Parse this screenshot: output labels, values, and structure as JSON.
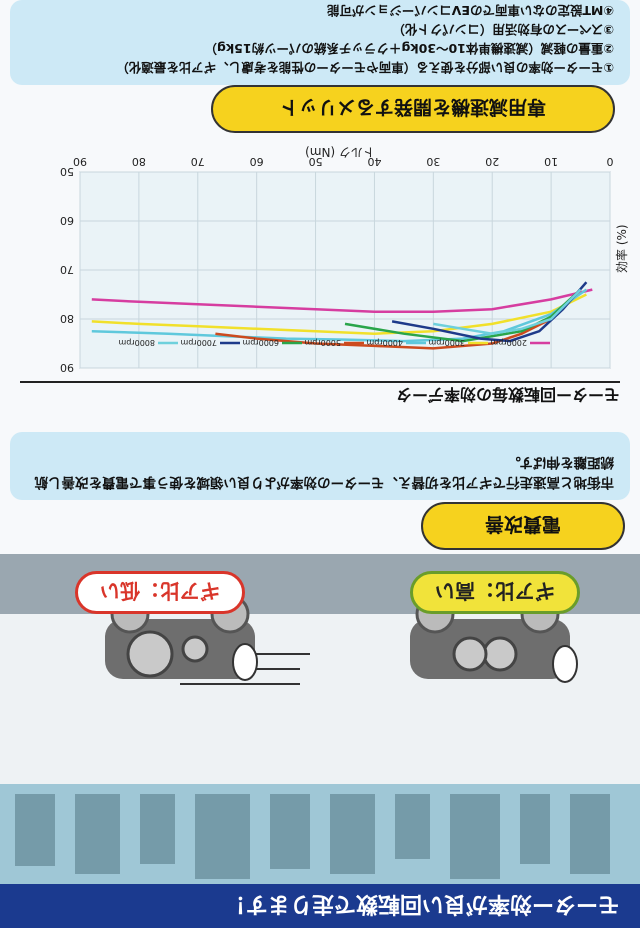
{
  "banner": {
    "text": "モーター効率が良い回転数で走ります！"
  },
  "illustration": {
    "bubble_high": "ギア比：高い",
    "bubble_low": "ギア比：低い"
  },
  "section_fuel": {
    "title": "電費改善",
    "description": "市街地と高速走行でギア比を切替え、モーターの効率がより良い領域を使う事で電費を改善し航続距離を伸ばす。"
  },
  "chart_section": {
    "title": "モーター回転数毎の効率データ"
  },
  "section_dev": {
    "title": "専用減速機を開発するメリット",
    "items": [
      "①モーター効率の良い部分を使える（車両やモーターの性能を考慮し、ギア比を最適化）",
      "②重量の軽減（減速機単体10～30kg＋クラッチ系統のパーツ約15kg）",
      "③スペースの有効活用（コンパクト化）",
      "④MT設定のない車両でのEVコンバージョンが可能"
    ]
  },
  "colors": {
    "2000rpm": "#d63da0",
    "3000rpm": "#f1e02a",
    "4000rpm": "#5fc8dc",
    "5000rpm": "#cc4a1e",
    "6000rpm": "#2aa54a",
    "7000rpm": "#1e3a8a",
    "8000rpm": "#6ed0dc"
  },
  "chart_data": {
    "type": "line",
    "title": "",
    "xlabel": "トルク (Nm)",
    "ylabel": "効率 (%)",
    "xlim": [
      0,
      90
    ],
    "ylim": [
      50,
      90
    ],
    "x_ticks": [
      0,
      10,
      20,
      30,
      40,
      50,
      60,
      70,
      80,
      90
    ],
    "y_ticks": [
      50,
      60,
      70,
      80,
      90
    ],
    "legend_position": "top",
    "series": [
      {
        "name": "2000rpm",
        "points": [
          [
            3,
            74
          ],
          [
            10,
            76
          ],
          [
            20,
            78
          ],
          [
            30,
            78.5
          ],
          [
            40,
            78.5
          ],
          [
            50,
            78
          ],
          [
            60,
            77.5
          ],
          [
            70,
            77
          ],
          [
            80,
            76.5
          ],
          [
            88,
            76
          ]
        ]
      },
      {
        "name": "3000rpm",
        "points": [
          [
            4,
            75
          ],
          [
            10,
            78.5
          ],
          [
            20,
            81
          ],
          [
            30,
            82.5
          ],
          [
            40,
            83
          ],
          [
            50,
            82.5
          ],
          [
            60,
            82
          ],
          [
            70,
            81.5
          ],
          [
            80,
            81
          ],
          [
            88,
            80.5
          ]
        ]
      },
      {
        "name": "4000rpm",
        "points": [
          [
            4,
            74
          ],
          [
            10,
            79
          ],
          [
            18,
            82.5
          ],
          [
            25,
            84
          ],
          [
            35,
            84.5
          ],
          [
            45,
            84.2
          ],
          [
            55,
            84
          ],
          [
            65,
            83.5
          ],
          [
            75,
            83
          ],
          [
            80,
            82.8
          ],
          [
            88,
            82.5
          ]
        ]
      },
      {
        "name": "5000rpm",
        "points": [
          [
            5,
            74
          ],
          [
            10,
            80
          ],
          [
            15,
            83
          ],
          [
            20,
            85
          ],
          [
            30,
            86
          ],
          [
            40,
            85.5
          ],
          [
            50,
            85
          ],
          [
            60,
            84
          ],
          [
            67,
            83
          ]
        ]
      },
      {
        "name": "6000rpm",
        "points": [
          [
            5,
            74
          ],
          [
            10,
            79.5
          ],
          [
            15,
            82.5
          ],
          [
            25,
            84.5
          ],
          [
            35,
            83
          ],
          [
            45,
            81
          ]
        ]
      },
      {
        "name": "7000rpm",
        "points": [
          [
            4,
            72.5
          ],
          [
            8,
            78
          ],
          [
            12,
            82.5
          ],
          [
            17,
            84.5
          ],
          [
            22,
            84
          ],
          [
            30,
            82
          ],
          [
            37,
            80.5
          ]
        ]
      },
      {
        "name": "8000rpm",
        "points": [
          [
            5,
            74
          ],
          [
            10,
            80
          ],
          [
            15,
            82
          ],
          [
            20,
            83
          ],
          [
            25,
            82
          ],
          [
            30,
            81
          ]
        ]
      }
    ]
  }
}
